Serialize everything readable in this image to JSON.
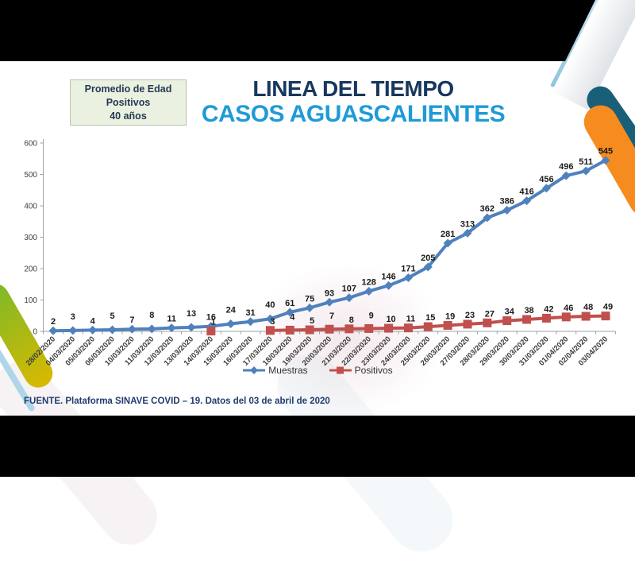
{
  "header": {
    "title_line1": "LINEA DEL TIEMPO",
    "title_line2": "CASOS AGUASCALIENTES",
    "title_line1_color": "#17375E",
    "title_line2_color": "#1F9AD7"
  },
  "info_box": {
    "line1": "Promedio de Edad",
    "line2": "Positivos",
    "line3": "40 años",
    "bg_color": "#EBF1E0"
  },
  "legend": {
    "items": [
      {
        "label": "Muestras",
        "color": "#4F81BD",
        "marker": "diamond"
      },
      {
        "label": "Positivos",
        "color": "#C0504D",
        "marker": "square"
      }
    ]
  },
  "footer": {
    "source_text": "FUENTE. Plataforma SINAVE COVID – 19. Datos del 03 de abril de 2020"
  },
  "decoration_colors": {
    "teal_stripe": "#1A5F78",
    "orange_stripe": "#F68B1F",
    "green_stripe_top": "#7AB929",
    "green_stripe_bottom": "#D8B902",
    "light_blue_stripe": "#AED6E8",
    "letterbox": "#000000"
  },
  "chart_data": {
    "type": "line",
    "title": "",
    "xlabel": "",
    "ylabel": "",
    "ylim": [
      0,
      600
    ],
    "yticks": [
      0,
      100,
      200,
      300,
      400,
      500,
      600
    ],
    "grid": false,
    "legend_position": "bottom",
    "categories": [
      "28/02/2020",
      "04/03/2020",
      "05/03/2020",
      "06/03/2020",
      "10/03/2020",
      "11/03/2020",
      "12/03/2020",
      "13/03/2020",
      "14/03/2020",
      "15/03/2020",
      "16/03/2020",
      "17/03/2020",
      "18/03/2020",
      "19/03/2020",
      "20/03/2020",
      "21/03/2020",
      "22/03/2020",
      "23/03/2020",
      "24/03/2020",
      "25/03/2020",
      "26/03/2020",
      "27/03/2020",
      "28/03/2020",
      "29/03/2020",
      "30/03/2020",
      "31/03/2020",
      "01/04/2020",
      "02/04/2020",
      "03/04/2020"
    ],
    "series": [
      {
        "name": "Muestras",
        "color": "#4F81BD",
        "marker": "diamond",
        "values": [
          2,
          3,
          4,
          5,
          7,
          8,
          11,
          13,
          16,
          24,
          31,
          40,
          61,
          75,
          93,
          107,
          128,
          146,
          171,
          205,
          281,
          313,
          362,
          386,
          416,
          456,
          496,
          511,
          545
        ]
      },
      {
        "name": "Positivos",
        "color": "#C0504D",
        "marker": "square",
        "values": [
          null,
          null,
          null,
          null,
          null,
          null,
          null,
          null,
          1,
          null,
          null,
          3,
          4,
          5,
          7,
          8,
          9,
          10,
          11,
          15,
          19,
          23,
          27,
          34,
          38,
          42,
          46,
          48,
          49
        ]
      }
    ]
  }
}
